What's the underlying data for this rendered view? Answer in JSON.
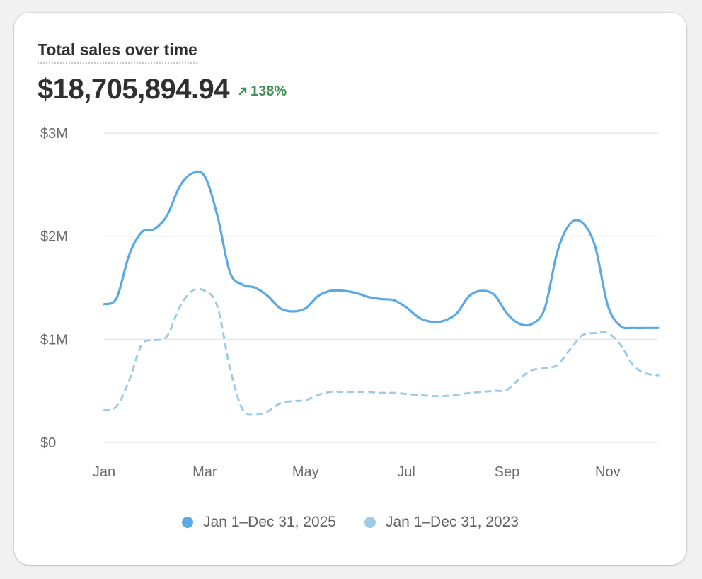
{
  "card": {
    "title": "Total sales over time",
    "total": "$18,705,894.94",
    "change": "138%"
  },
  "colors": {
    "current": "#5aa9e6",
    "previous": "#9ecbe8",
    "positive": "#3f8f57"
  },
  "chart_data": {
    "type": "line",
    "title": "Total sales over time",
    "xlabel": "",
    "ylabel": "",
    "ylim": [
      0,
      3000000
    ],
    "grid": true,
    "legend_position": "bottom",
    "yticks": [
      {
        "value": 3000000,
        "label": "$3M"
      },
      {
        "value": 2000000,
        "label": "$2M"
      },
      {
        "value": 1000000,
        "label": "$1M"
      },
      {
        "value": 0,
        "label": "$0"
      }
    ],
    "xticks": [
      {
        "x": 0,
        "label": "Jan"
      },
      {
        "x": 2,
        "label": "Mar"
      },
      {
        "x": 4,
        "label": "May"
      },
      {
        "x": 6,
        "label": "Jul"
      },
      {
        "x": 8,
        "label": "Sep"
      },
      {
        "x": 10,
        "label": "Nov"
      }
    ],
    "x": [
      0,
      0.25,
      0.5,
      0.75,
      1,
      1.25,
      1.5,
      1.75,
      2,
      2.25,
      2.5,
      2.75,
      3,
      3.25,
      3.5,
      3.75,
      4,
      4.25,
      4.5,
      4.75,
      5,
      5.25,
      5.5,
      5.75,
      6,
      6.25,
      6.5,
      6.75,
      7,
      7.25,
      7.5,
      7.75,
      8,
      8.25,
      8.5,
      8.75,
      9,
      9.25,
      9.5,
      9.75,
      10,
      10.25,
      10.5,
      10.75,
      11
    ],
    "series": [
      {
        "name": "Jan 1–Dec 31, 2025",
        "style": "solid",
        "color": "#5aa9e6",
        "values": [
          1340000,
          1400000,
          1820000,
          2040000,
          2070000,
          2200000,
          2480000,
          2610000,
          2580000,
          2200000,
          1650000,
          1530000,
          1500000,
          1420000,
          1300000,
          1270000,
          1300000,
          1420000,
          1470000,
          1470000,
          1450000,
          1410000,
          1390000,
          1380000,
          1310000,
          1210000,
          1170000,
          1180000,
          1250000,
          1420000,
          1470000,
          1430000,
          1250000,
          1150000,
          1150000,
          1300000,
          1850000,
          2120000,
          2130000,
          1900000,
          1330000,
          1130000,
          1110000,
          1110000,
          1110000
        ]
      },
      {
        "name": "Jan 1–Dec 31, 2023",
        "style": "dashed",
        "color": "#9ecbe8",
        "values": [
          310000,
          350000,
          600000,
          950000,
          990000,
          1030000,
          1310000,
          1470000,
          1470000,
          1320000,
          720000,
          320000,
          270000,
          300000,
          380000,
          400000,
          410000,
          460000,
          490000,
          490000,
          490000,
          490000,
          480000,
          480000,
          470000,
          460000,
          450000,
          450000,
          460000,
          480000,
          490000,
          500000,
          510000,
          620000,
          700000,
          720000,
          750000,
          900000,
          1040000,
          1060000,
          1060000,
          950000,
          750000,
          670000,
          650000
        ]
      }
    ]
  },
  "legend": {
    "items": [
      {
        "label": "Jan 1–Dec 31, 2025"
      },
      {
        "label": "Jan 1–Dec 31, 2023"
      }
    ]
  }
}
